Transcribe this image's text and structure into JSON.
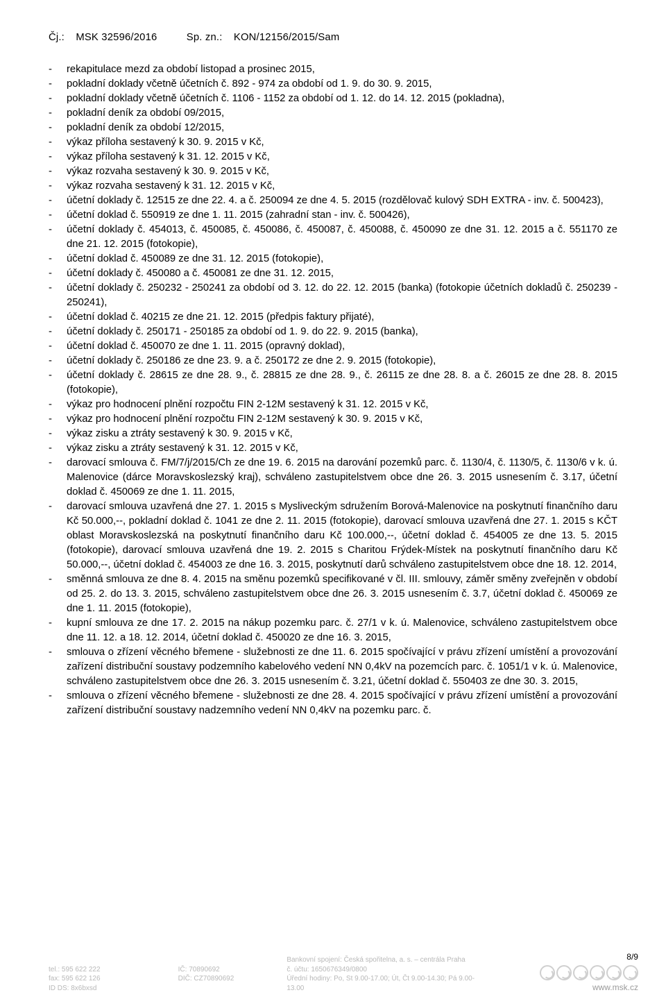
{
  "header": {
    "cj_label": "Čj.:",
    "cj_value": "MSK 32596/2016",
    "sp_label": "Sp. zn.:",
    "sp_value": "KON/12156/2015/Sam"
  },
  "items": [
    "rekapitulace mezd za období listopad a prosinec 2015,",
    "pokladní doklady včetně účetních č. 892 - 974 za období od 1. 9. do 30. 9. 2015,",
    "pokladní doklady včetně účetních č. 1106 - 1152 za období od 1. 12. do 14. 12. 2015 (pokladna),",
    "pokladní deník za období 09/2015,",
    "pokladní deník za období 12/2015,",
    "výkaz příloha sestavený k 30. 9. 2015 v Kč,",
    "výkaz příloha sestavený k 31. 12. 2015 v Kč,",
    "výkaz rozvaha sestavený k 30. 9. 2015 v Kč,",
    "výkaz rozvaha sestavený k 31. 12. 2015 v Kč,",
    "účetní doklady č. 12515 ze dne 22. 4. a č. 250094 ze dne 4. 5. 2015 (rozdělovač kulový SDH EXTRA - inv. č. 500423),",
    "účetní doklad č. 550919 ze dne 1. 11. 2015 (zahradní stan - inv. č. 500426),",
    "účetní doklady č. 454013, č. 450085, č. 450086, č. 450087, č. 450088, č. 450090 ze dne 31. 12. 2015 a č. 551170 ze dne 21. 12. 2015 (fotokopie),",
    "účetní doklad č. 450089 ze dne 31. 12. 2015 (fotokopie),",
    "účetní doklady č. 450080 a č. 450081 ze dne 31. 12. 2015,",
    "účetní doklady č. 250232 - 250241 za období od 3. 12. do 22. 12. 2015 (banka) (fotokopie účetních dokladů č. 250239 - 250241),",
    "účetní doklad č. 40215 ze dne 21. 12. 2015 (předpis faktury přijaté),",
    "účetní doklady č. 250171 - 250185 za období od 1. 9. do 22. 9. 2015 (banka),",
    "účetní doklad č. 450070 ze dne 1. 11. 2015 (opravný doklad),",
    "účetní doklady č. 250186 ze dne 23. 9. a č. 250172 ze dne 2. 9. 2015 (fotokopie),",
    "účetní doklady č. 28615 ze dne 28. 9., č. 28815 ze dne 28. 9., č. 26115 ze dne 28. 8. a č. 26015 ze dne 28. 8. 2015 (fotokopie),",
    "výkaz pro hodnocení plnění rozpočtu FIN 2-12M sestavený k 31. 12. 2015 v Kč,",
    "výkaz pro hodnocení plnění rozpočtu FIN 2-12M sestavený k 30. 9. 2015 v Kč,",
    "výkaz zisku a ztráty sestavený k 30. 9. 2015 v Kč,",
    "výkaz zisku a ztráty sestavený k 31. 12. 2015 v Kč,",
    "darovací smlouva č. FM/7/j/2015/Ch ze dne 19. 6. 2015 na darování pozemků parc. č. 1130/4, č. 1130/5, č. 1130/6 v k. ú. Malenovice (dárce Moravskoslezský kraj), schváleno zastupitelstvem obce dne 26. 3. 2015 usnesením č. 3.17, účetní doklad č. 450069 ze dne 1. 11. 2015,",
    "darovací smlouva uzavřená dne 27. 1. 2015 s Mysliveckým sdružením Borová-Malenovice na poskytnutí finančního daru Kč 50.000,--, pokladní doklad č. 1041 ze dne 2. 11. 2015 (fotokopie), darovací smlouva uzavřená dne 27. 1. 2015 s KČT oblast Moravskoslezská na poskytnutí finančního daru Kč 100.000,--, účetní doklad č. 454005 ze dne 13. 5. 2015 (fotokopie), darovací smlouva uzavřená dne 19. 2. 2015 s Charitou Frýdek-Místek na poskytnutí finančního daru Kč 50.000,--, účetní doklad č. 454003 ze dne 16. 3. 2015, poskytnutí darů schváleno zastupitelstvem obce dne 18. 12. 2014,",
    "směnná smlouva ze dne 8. 4. 2015 na směnu pozemků specifikované v čl. III. smlouvy, záměr směny zveřejněn v období od 25. 2. do 13. 3. 2015, schváleno zastupitelstvem obce dne 26. 3. 2015 usnesením č. 3.7, účetní doklad č. 450069 ze dne 1. 11. 2015 (fotokopie),",
    "kupní smlouva ze dne 17. 2. 2015 na nákup pozemku parc. č. 27/1 v k. ú. Malenovice, schváleno zastupitelstvem obce dne 11. 12. a 18. 12. 2014, účetní doklad č. 450020 ze dne 16. 3. 2015,",
    "smlouva o zřízení věcného břemene - služebnosti ze dne 11. 6. 2015 spočívající v právu zřízení umístění a provozování zařízení distribuční soustavy podzemního kabelového vedení NN 0,4kV na pozemcích parc. č. 1051/1 v k. ú. Malenovice, schváleno zastupitelstvem obce dne 26. 3. 2015 usnesením č. 3.21, účetní doklad č. 550403 ze dne 30. 3. 2015,",
    "smlouva o zřízení věcného břemene - služebnosti ze dne 28. 4. 2015 spočívající v právu zřízení umístění a provozování zařízení distribuční soustavy nadzemního vedení NN 0,4kV na pozemku parc. č."
  ],
  "footer": {
    "tel": "tel.: 595 622 222",
    "fax": "fax: 595 622 126",
    "idds": "ID DS: 8x6bxsd",
    "ic": "IČ: 70890692",
    "dic": "DIČ: CZ70890692",
    "bank": "Bankovní spojení: Česká spořitelna, a. s. – centrála Praha",
    "acct": "č. účtu: 1650676349/0800",
    "hours": "Úřední hodiny: Po, St 9.00-17.00; Út, Čt 9.00-14.30; Pá 9.00-13.00",
    "page_num": "8/9",
    "www": "www.msk.cz"
  }
}
